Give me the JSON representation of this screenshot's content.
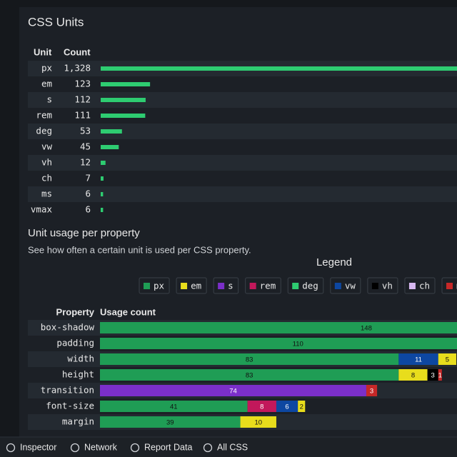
{
  "chart_data": [
    {
      "type": "bar",
      "title": "CSS Units",
      "category_header": "Unit",
      "value_header": "Count",
      "color": "#2ecc71",
      "categories": [
        "px",
        "em",
        "s",
        "rem",
        "deg",
        "vw",
        "vh",
        "ch",
        "ms",
        "vmax"
      ],
      "values": [
        1328,
        123,
        112,
        111,
        53,
        45,
        12,
        7,
        6,
        6
      ],
      "value_labels": [
        "1,328",
        "123",
        "112",
        "111",
        "53",
        "45",
        "12",
        "7",
        "6",
        "6"
      ]
    },
    {
      "type": "stacked-bar",
      "title": "Unit usage per property",
      "subtitle": "See how often a certain unit is used per CSS property.",
      "legend_title": "Legend",
      "category_header": "Property",
      "value_header": "Usage count",
      "series": [
        {
          "name": "px",
          "color": "#1f9d55"
        },
        {
          "name": "em",
          "color": "#e8dd1c"
        },
        {
          "name": "s",
          "color": "#7b2fc9"
        },
        {
          "name": "rem",
          "color": "#c2185b"
        },
        {
          "name": "deg",
          "color": "#2ecc71"
        },
        {
          "name": "vw",
          "color": "#0d47a1"
        },
        {
          "name": "vh",
          "color": "#000000"
        },
        {
          "name": "ch",
          "color": "#d7b8f0"
        },
        {
          "name": "ms",
          "color": "#c62828"
        }
      ],
      "rows": [
        {
          "property": "box-shadow",
          "segments": [
            {
              "unit": "px",
              "value": 148
            }
          ]
        },
        {
          "property": "padding",
          "segments": [
            {
              "unit": "px",
              "value": 110
            }
          ]
        },
        {
          "property": "width",
          "segments": [
            {
              "unit": "px",
              "value": 83
            },
            {
              "unit": "vw",
              "value": 11
            },
            {
              "unit": "em",
              "value": 5
            }
          ]
        },
        {
          "property": "height",
          "segments": [
            {
              "unit": "px",
              "value": 83
            },
            {
              "unit": "em",
              "value": 8
            },
            {
              "unit": "vh",
              "value": 3
            },
            {
              "unit": "ms",
              "value": 1
            }
          ]
        },
        {
          "property": "transition",
          "segments": [
            {
              "unit": "s",
              "value": 74
            },
            {
              "unit": "ms",
              "value": 3
            }
          ]
        },
        {
          "property": "font-size",
          "segments": [
            {
              "unit": "px",
              "value": 41
            },
            {
              "unit": "rem",
              "value": 8
            },
            {
              "unit": "vw",
              "value": 6
            },
            {
              "unit": "em",
              "value": 2
            }
          ]
        },
        {
          "property": "margin",
          "segments": [
            {
              "unit": "px",
              "value": 39
            },
            {
              "unit": "em",
              "value": 10
            }
          ]
        }
      ]
    }
  ],
  "toolbar": [
    "Inspector",
    "Network",
    "Report Data",
    "All CSS"
  ]
}
